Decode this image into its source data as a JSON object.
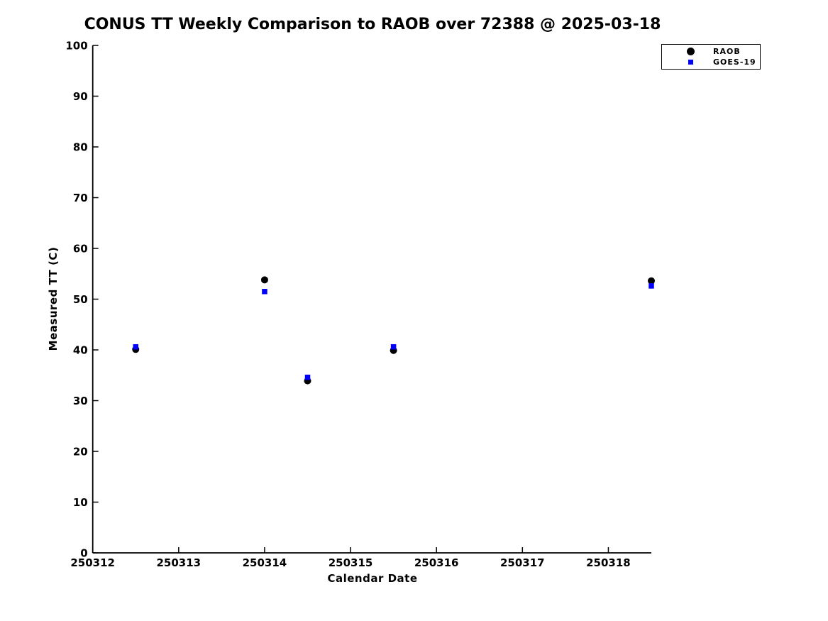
{
  "chart_data": {
    "type": "scatter",
    "title": "CONUS TT Weekly Comparison to RAOB over 72388 @ 2025-03-18",
    "xlabel": "Calendar Date",
    "ylabel": "Measured TT (C)",
    "xlim": [
      250312,
      250318.5
    ],
    "ylim": [
      0,
      100
    ],
    "x_ticks": [
      250312,
      250313,
      250314,
      250315,
      250316,
      250317,
      250318
    ],
    "y_ticks": [
      0,
      10,
      20,
      30,
      40,
      50,
      60,
      70,
      80,
      90,
      100
    ],
    "grid": false,
    "legend_position": "upper-right",
    "series": [
      {
        "name": "RAOB",
        "marker": "circle",
        "color": "#000000",
        "x": [
          250312.5,
          250314.0,
          250314.5,
          250315.5,
          250318.5
        ],
        "y": [
          40.1,
          53.8,
          33.9,
          39.9,
          53.6
        ]
      },
      {
        "name": "GOES-19",
        "marker": "square",
        "color": "#0000ff",
        "x": [
          250312.5,
          250314.0,
          250314.5,
          250315.5,
          250318.5
        ],
        "y": [
          40.6,
          51.5,
          34.6,
          40.6,
          52.6
        ]
      }
    ],
    "colors": {
      "background": "#ffffff",
      "axis": "#000000",
      "text": "#000000"
    }
  }
}
